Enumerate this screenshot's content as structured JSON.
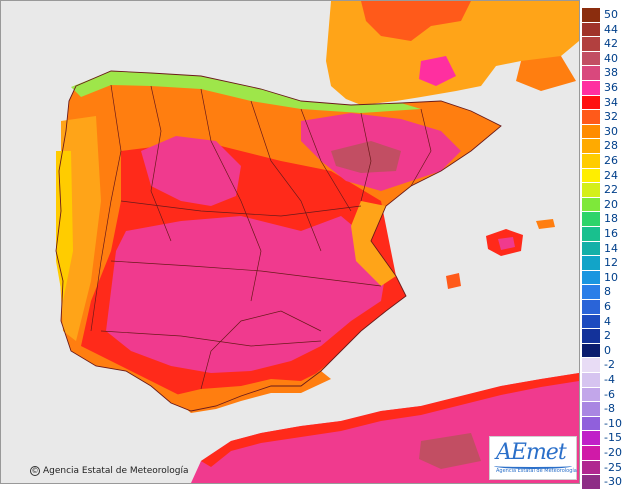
{
  "credit": {
    "text": "Agencia Estatal de Meteorología",
    "icon": "copyright-icon"
  },
  "logo": {
    "mark": "AEmet",
    "subtitle": "Agencia Estatal de Meteorología"
  },
  "legend": {
    "items": [
      {
        "label": "50",
        "color": "#8b2d0e"
      },
      {
        "label": "44",
        "color": "#a0332a"
      },
      {
        "label": "42",
        "color": "#b2403f"
      },
      {
        "label": "40",
        "color": "#c24e63"
      },
      {
        "label": "38",
        "color": "#d9487d"
      },
      {
        "label": "36",
        "color": "#ff2fa0"
      },
      {
        "label": "34",
        "color": "#ff1010"
      },
      {
        "label": "32",
        "color": "#ff5a1a"
      },
      {
        "label": "30",
        "color": "#ff8c00"
      },
      {
        "label": "28",
        "color": "#ffaa00"
      },
      {
        "label": "26",
        "color": "#ffcc00"
      },
      {
        "label": "24",
        "color": "#ffee00"
      },
      {
        "label": "22",
        "color": "#d4ef1a"
      },
      {
        "label": "20",
        "color": "#7ee83a"
      },
      {
        "label": "18",
        "color": "#2ed46a"
      },
      {
        "label": "16",
        "color": "#19c08e"
      },
      {
        "label": "14",
        "color": "#14b0a8"
      },
      {
        "label": "12",
        "color": "#12a4c8"
      },
      {
        "label": "10",
        "color": "#1a96e0"
      },
      {
        "label": "8",
        "color": "#2a7ee8"
      },
      {
        "label": "6",
        "color": "#2a64d8"
      },
      {
        "label": "4",
        "color": "#1d4bbf"
      },
      {
        "label": "2",
        "color": "#13329a"
      },
      {
        "label": "0",
        "color": "#0a1c6e"
      },
      {
        "label": "-2",
        "color": "#e8dcf5"
      },
      {
        "label": "-4",
        "color": "#d6c4f0"
      },
      {
        "label": "-6",
        "color": "#c2a6ea"
      },
      {
        "label": "-8",
        "color": "#a986e2"
      },
      {
        "label": "-10",
        "color": "#9060dc"
      },
      {
        "label": "-15",
        "color": "#c020c8"
      },
      {
        "label": "-20",
        "color": "#d01aa8"
      },
      {
        "label": "-25",
        "color": "#b02890"
      },
      {
        "label": "-30",
        "color": "#8e2e86"
      }
    ]
  },
  "colors": {
    "sea": "#e9e9e9",
    "hot_pink": "#f03a8e",
    "red": "#ff2a1a",
    "orange": "#ff7e10",
    "amber": "#ffa418",
    "green": "#9ee64a",
    "border": "#6a1a1a"
  }
}
